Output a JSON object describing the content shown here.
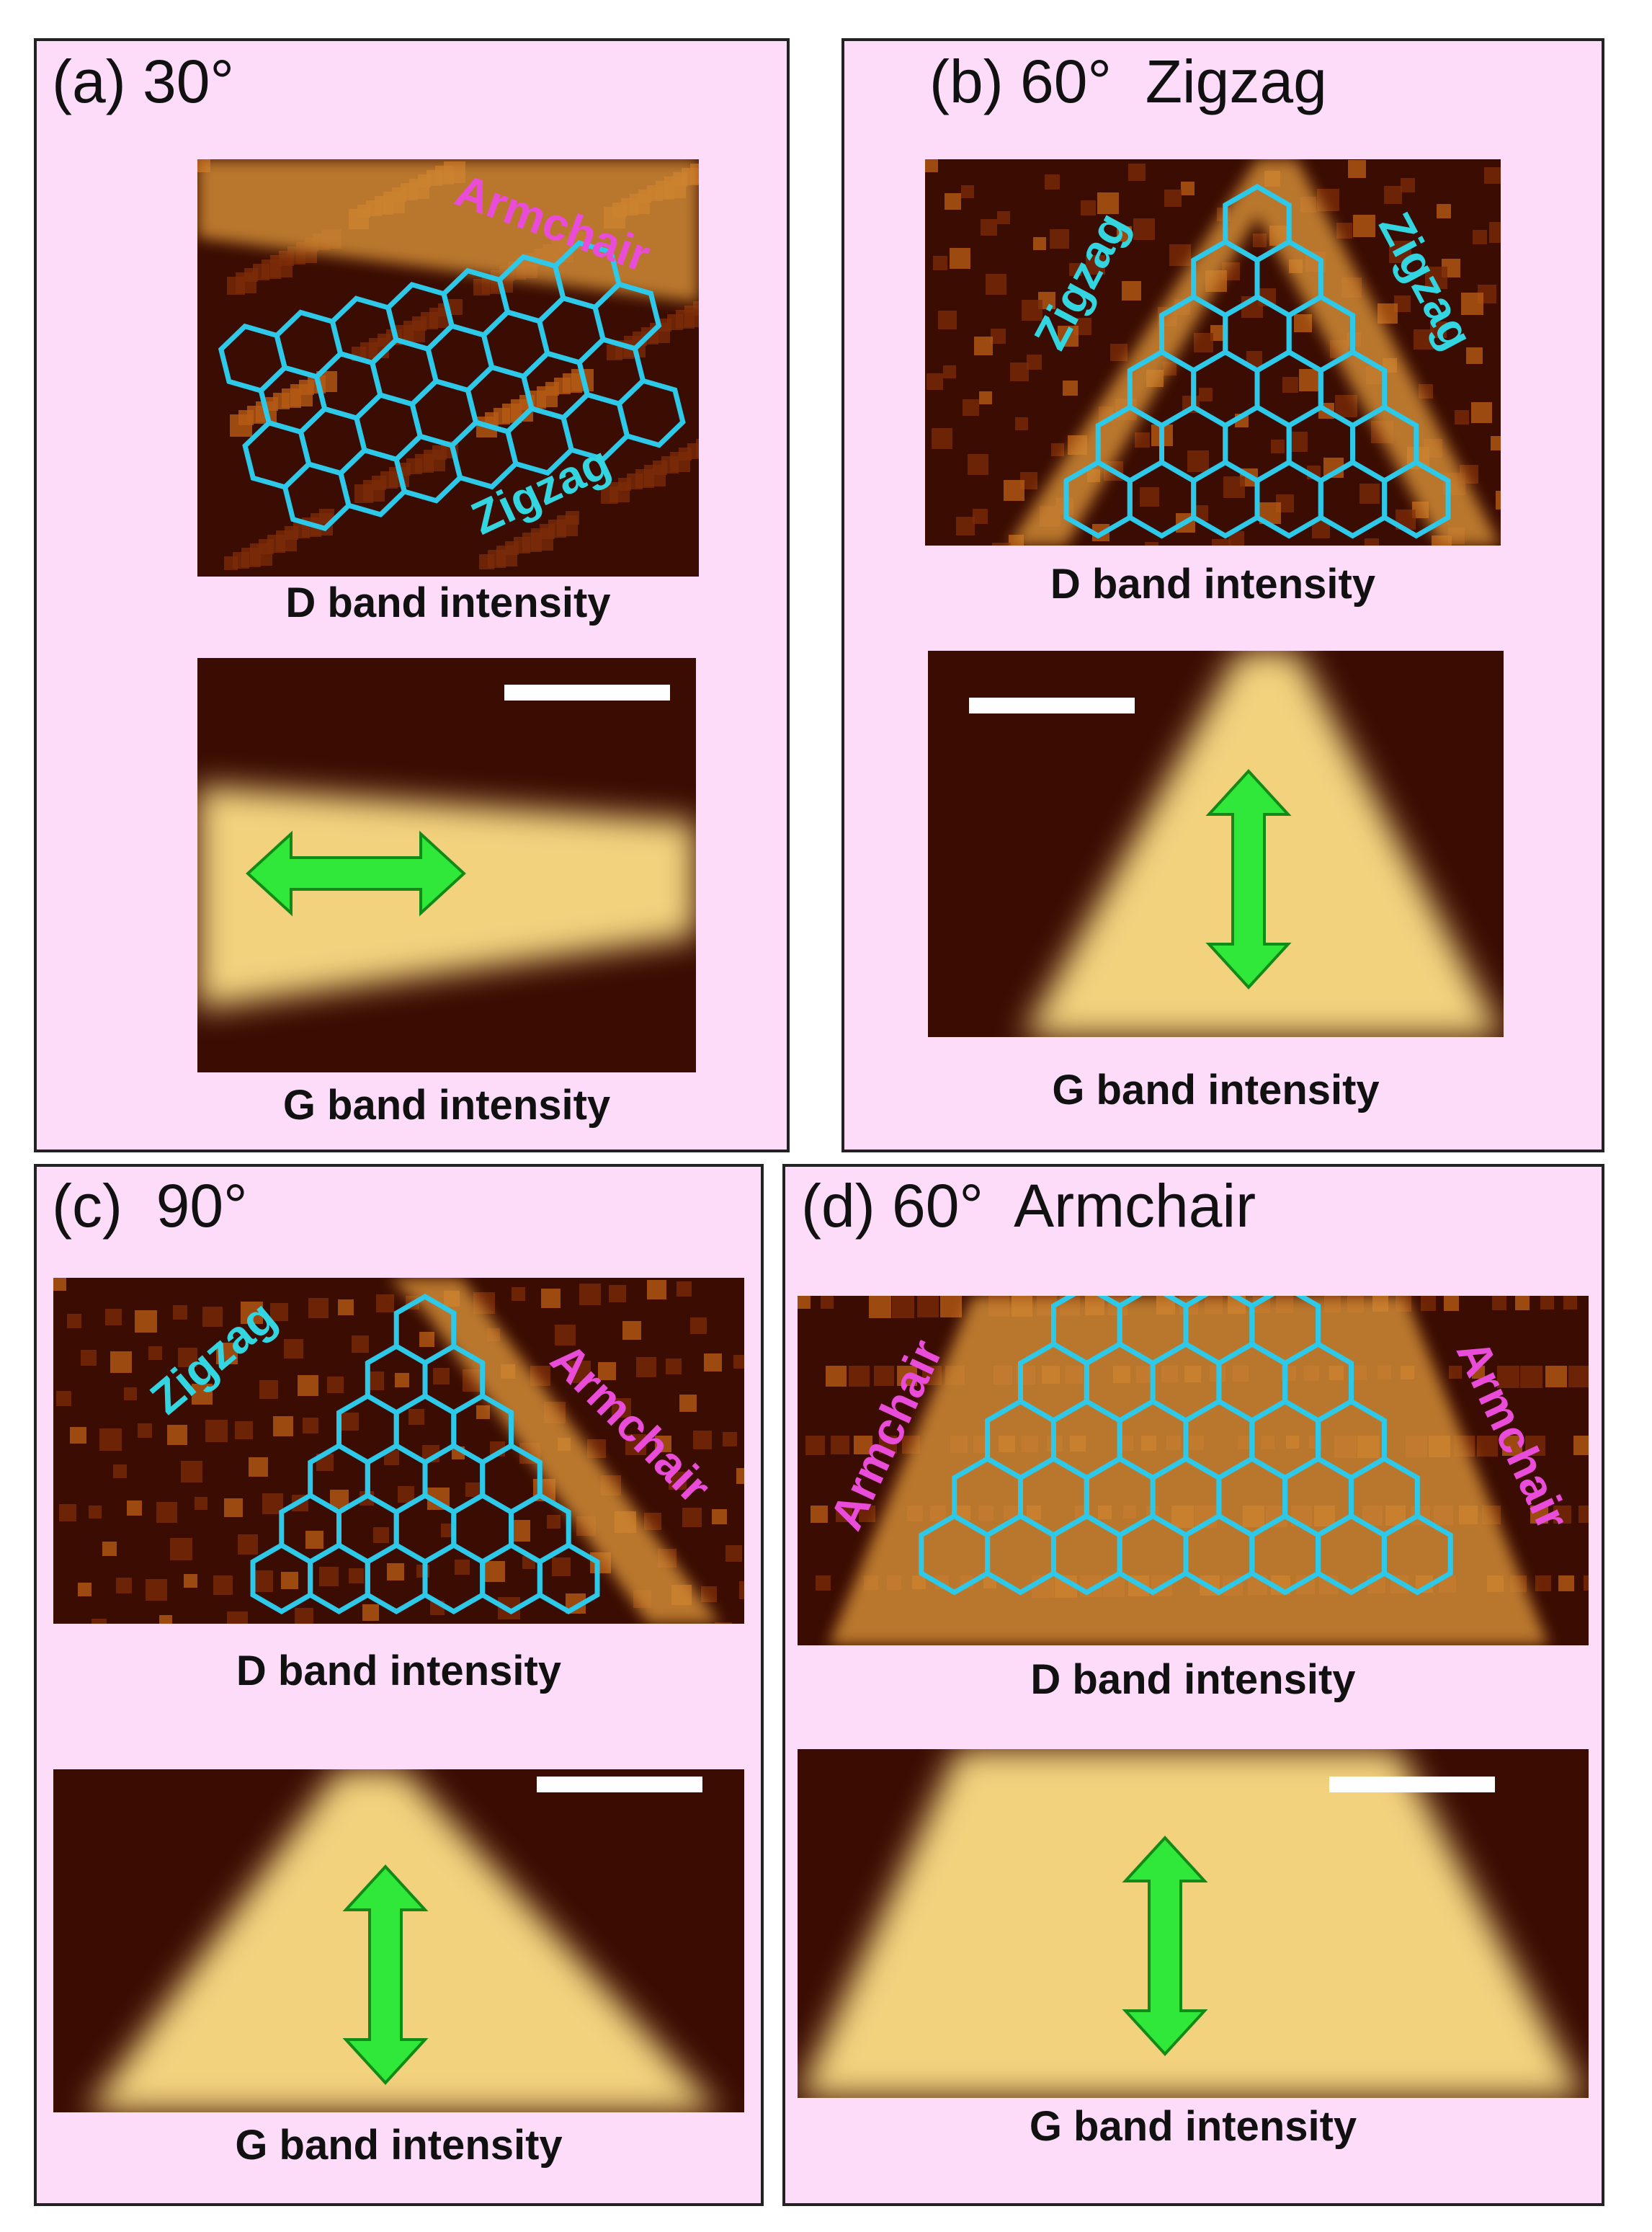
{
  "panels": [
    {
      "title": "(a) 30°",
      "edge_labels": [
        "Armchair",
        "Zigzag"
      ],
      "d_caption": "D band intensity",
      "g_caption": "G band intensity"
    },
    {
      "title": "(b) 60°  Zigzag",
      "edge_labels": [
        "Zigzag",
        "Zigzag"
      ],
      "d_caption": "D band intensity",
      "g_caption": "G band intensity"
    },
    {
      "title": "(c)  90°",
      "edge_labels": [
        "Zigzag",
        "Armchair"
      ],
      "d_caption": "D band intensity",
      "g_caption": "G band intensity"
    },
    {
      "title": "(d) 60°  Armchair",
      "edge_labels": [
        "Armchair",
        "Armchair"
      ],
      "d_caption": "D band intensity",
      "g_caption": "G band intensity"
    }
  ]
}
